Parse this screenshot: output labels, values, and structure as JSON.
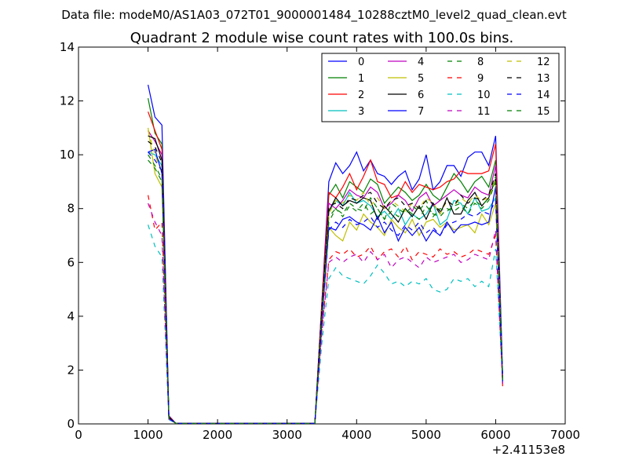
{
  "chart_data": {
    "type": "line",
    "suptitle": "Data file: modeM0/AS1A03_072T01_9000001484_10288cztM0_level2_quad_clean.evt",
    "title": "Quadrant 2 module wise count rates with 100.0s bins.",
    "xlabel": "",
    "ylabel": "",
    "x_offset_label": "+2.41153e8",
    "xlim": [
      0,
      7000
    ],
    "ylim": [
      0,
      14
    ],
    "xticks": [
      0,
      1000,
      2000,
      3000,
      4000,
      5000,
      6000,
      7000
    ],
    "yticks": [
      0,
      2,
      4,
      6,
      8,
      10,
      12,
      14
    ],
    "grid": false,
    "legend_position": "top-right",
    "legend_columns": 4,
    "x": [
      1000,
      1100,
      1200,
      1300,
      1400,
      3400,
      3500,
      3600,
      3700,
      3800,
      3900,
      4000,
      4100,
      4200,
      4300,
      4400,
      4500,
      4600,
      4700,
      4800,
      4900,
      5000,
      5100,
      5200,
      5300,
      5400,
      5500,
      5600,
      5700,
      5800,
      5900,
      6000,
      6100
    ],
    "series": [
      {
        "name": "0",
        "color": "#0000ff",
        "dash": "solid",
        "values": [
          12.6,
          11.4,
          11.1,
          0.3,
          0.02,
          0.02,
          4.5,
          9.0,
          9.7,
          9.3,
          9.6,
          10.1,
          9.4,
          9.8,
          9.3,
          9.2,
          8.9,
          9.2,
          9.4,
          8.7,
          9.1,
          10.0,
          8.7,
          9.0,
          9.6,
          9.6,
          9.2,
          9.9,
          10.1,
          10.1,
          9.6,
          10.7,
          1.8
        ]
      },
      {
        "name": "1",
        "color": "#008000",
        "dash": "solid",
        "values": [
          12.1,
          10.8,
          10.4,
          0.25,
          0.02,
          0.02,
          4.4,
          8.5,
          8.9,
          8.4,
          9.0,
          8.8,
          8.6,
          9.1,
          8.9,
          8.2,
          8.5,
          8.8,
          8.6,
          8.3,
          8.5,
          8.9,
          8.5,
          8.3,
          8.8,
          9.3,
          9.0,
          8.6,
          9.0,
          9.2,
          8.8,
          9.8,
          1.7
        ]
      },
      {
        "name": "2",
        "color": "#ff0000",
        "dash": "solid",
        "values": [
          11.6,
          10.9,
          10.2,
          0.28,
          0.02,
          0.02,
          4.5,
          8.6,
          8.4,
          8.8,
          9.3,
          8.7,
          9.2,
          9.8,
          9.0,
          8.9,
          8.4,
          8.5,
          9.0,
          8.6,
          8.9,
          8.8,
          8.7,
          8.8,
          9.0,
          9.1,
          9.4,
          9.3,
          9.3,
          9.3,
          9.4,
          10.4,
          1.4
        ]
      },
      {
        "name": "3",
        "color": "#00bfbf",
        "dash": "solid",
        "values": [
          10.1,
          10.0,
          9.6,
          0.22,
          0.02,
          0.02,
          4.0,
          7.9,
          8.3,
          8.1,
          8.6,
          8.2,
          8.3,
          8.1,
          7.7,
          7.9,
          7.6,
          8.0,
          7.4,
          7.8,
          7.6,
          7.8,
          8.2,
          7.4,
          7.6,
          8.3,
          8.2,
          7.8,
          8.4,
          7.9,
          8.0,
          8.4,
          1.6
        ]
      },
      {
        "name": "4",
        "color": "#bf00bf",
        "dash": "solid",
        "values": [
          10.9,
          10.5,
          10.0,
          0.25,
          0.02,
          0.02,
          4.3,
          8.2,
          8.0,
          8.3,
          8.7,
          8.5,
          8.4,
          8.8,
          8.6,
          8.0,
          8.2,
          8.5,
          8.3,
          7.9,
          8.4,
          8.6,
          8.1,
          8.3,
          8.5,
          8.7,
          8.5,
          8.4,
          8.8,
          8.6,
          8.5,
          9.6,
          1.6
        ]
      },
      {
        "name": "5",
        "color": "#bfbf00",
        "dash": "solid",
        "values": [
          11.0,
          9.3,
          8.8,
          0.22,
          0.02,
          0.02,
          3.9,
          7.3,
          7.0,
          6.8,
          7.5,
          7.2,
          7.8,
          7.5,
          7.3,
          7.0,
          7.6,
          7.3,
          7.1,
          7.6,
          7.0,
          7.5,
          7.6,
          7.3,
          7.5,
          7.2,
          7.3,
          7.4,
          7.1,
          7.8,
          7.4,
          8.2,
          1.6
        ]
      },
      {
        "name": "6",
        "color": "#000000",
        "dash": "solid",
        "values": [
          10.7,
          10.6,
          9.8,
          0.25,
          0.02,
          0.02,
          4.2,
          7.9,
          8.4,
          8.1,
          8.3,
          8.2,
          8.4,
          8.3,
          7.6,
          8.1,
          7.8,
          7.5,
          8.0,
          7.7,
          8.1,
          7.6,
          8.2,
          7.8,
          8.4,
          7.8,
          7.8,
          8.3,
          8.6,
          8.1,
          8.4,
          9.1,
          1.6
        ]
      },
      {
        "name": "7",
        "color": "#0000ff",
        "dash": "solid",
        "values": [
          10.1,
          10.2,
          9.3,
          0.22,
          0.02,
          0.02,
          3.8,
          7.3,
          7.2,
          7.6,
          7.7,
          7.5,
          7.4,
          7.2,
          7.7,
          7.1,
          7.5,
          6.8,
          7.3,
          7.0,
          7.3,
          6.8,
          7.2,
          7.0,
          7.5,
          7.1,
          7.4,
          7.4,
          7.5,
          7.4,
          7.5,
          8.8,
          1.5
        ]
      },
      {
        "name": "8",
        "color": "#008000",
        "dash": "dashed",
        "values": [
          9.8,
          9.5,
          9.0,
          0.2,
          0.02,
          0.02,
          4.1,
          7.7,
          8.0,
          7.8,
          8.2,
          8.0,
          7.9,
          8.4,
          8.0,
          7.6,
          8.2,
          8.0,
          7.8,
          8.1,
          7.9,
          8.3,
          7.7,
          8.0,
          7.9,
          8.1,
          8.2,
          8.0,
          8.3,
          8.1,
          8.4,
          9.2,
          1.6
        ]
      },
      {
        "name": "9",
        "color": "#ff0000",
        "dash": "dashed",
        "values": [
          8.5,
          7.2,
          7.5,
          0.18,
          0.02,
          0.02,
          3.5,
          6.1,
          6.4,
          6.3,
          6.5,
          6.2,
          6.3,
          6.6,
          6.1,
          6.4,
          6.5,
          6.2,
          6.6,
          6.1,
          6.4,
          6.3,
          6.2,
          6.5,
          6.3,
          6.4,
          6.2,
          6.3,
          6.5,
          6.4,
          6.3,
          7.0,
          1.5
        ]
      },
      {
        "name": "10",
        "color": "#00bfbf",
        "dash": "dashed",
        "values": [
          7.4,
          6.6,
          6.2,
          0.16,
          0.02,
          0.02,
          3.0,
          5.4,
          5.8,
          5.5,
          5.4,
          5.3,
          5.2,
          5.5,
          5.9,
          5.6,
          5.2,
          5.3,
          5.1,
          5.3,
          5.2,
          5.4,
          5.0,
          4.9,
          5.0,
          5.4,
          5.3,
          5.4,
          5.1,
          5.3,
          5.1,
          6.5,
          1.6
        ]
      },
      {
        "name": "11",
        "color": "#bf00bf",
        "dash": "dashed",
        "values": [
          8.2,
          7.5,
          7.0,
          0.18,
          0.02,
          0.02,
          3.4,
          6.0,
          6.2,
          6.0,
          6.2,
          6.3,
          6.0,
          6.4,
          6.1,
          6.3,
          5.8,
          6.1,
          6.2,
          6.0,
          5.8,
          6.2,
          6.0,
          6.1,
          6.2,
          6.3,
          6.0,
          6.1,
          6.3,
          6.2,
          6.1,
          7.2,
          1.5
        ]
      },
      {
        "name": "12",
        "color": "#bfbf00",
        "dash": "dashed",
        "values": [
          10.9,
          10.0,
          9.3,
          0.22,
          0.02,
          0.02,
          4.2,
          7.8,
          8.3,
          8.2,
          8.5,
          8.3,
          8.6,
          8.1,
          8.4,
          8.0,
          8.3,
          8.1,
          7.9,
          8.2,
          8.0,
          8.4,
          8.2,
          7.8,
          8.3,
          8.1,
          8.4,
          8.2,
          8.5,
          8.3,
          8.4,
          9.1,
          1.7
        ]
      },
      {
        "name": "13",
        "color": "#000000",
        "dash": "dashed",
        "values": [
          10.5,
          10.3,
          9.7,
          0.24,
          0.02,
          0.02,
          4.3,
          8.1,
          8.2,
          8.0,
          8.4,
          8.3,
          8.5,
          8.6,
          8.2,
          8.0,
          8.3,
          8.4,
          8.1,
          8.2,
          8.0,
          8.3,
          8.2,
          7.9,
          8.3,
          8.1,
          8.5,
          8.2,
          8.4,
          8.3,
          8.5,
          9.3,
          1.7
        ]
      },
      {
        "name": "14",
        "color": "#0000ff",
        "dash": "dashed",
        "values": [
          10.1,
          9.8,
          9.4,
          0.2,
          0.02,
          0.02,
          3.8,
          7.2,
          7.5,
          7.3,
          7.6,
          7.4,
          7.5,
          7.7,
          7.3,
          7.5,
          7.2,
          7.0,
          7.4,
          7.2,
          7.5,
          7.1,
          7.3,
          7.0,
          7.4,
          7.5,
          7.6,
          7.8,
          7.7,
          7.9,
          7.8,
          8.3,
          1.6
        ]
      },
      {
        "name": "15",
        "color": "#008000",
        "dash": "dashed",
        "values": [
          10.0,
          9.6,
          9.1,
          0.2,
          0.02,
          0.02,
          4.0,
          7.5,
          8.0,
          7.7,
          8.1,
          7.9,
          8.2,
          7.8,
          8.0,
          7.6,
          7.9,
          7.7,
          8.0,
          7.8,
          7.6,
          8.1,
          7.8,
          7.7,
          8.0,
          7.9,
          8.1,
          7.8,
          8.2,
          8.0,
          8.3,
          9.0,
          1.6
        ]
      }
    ]
  }
}
